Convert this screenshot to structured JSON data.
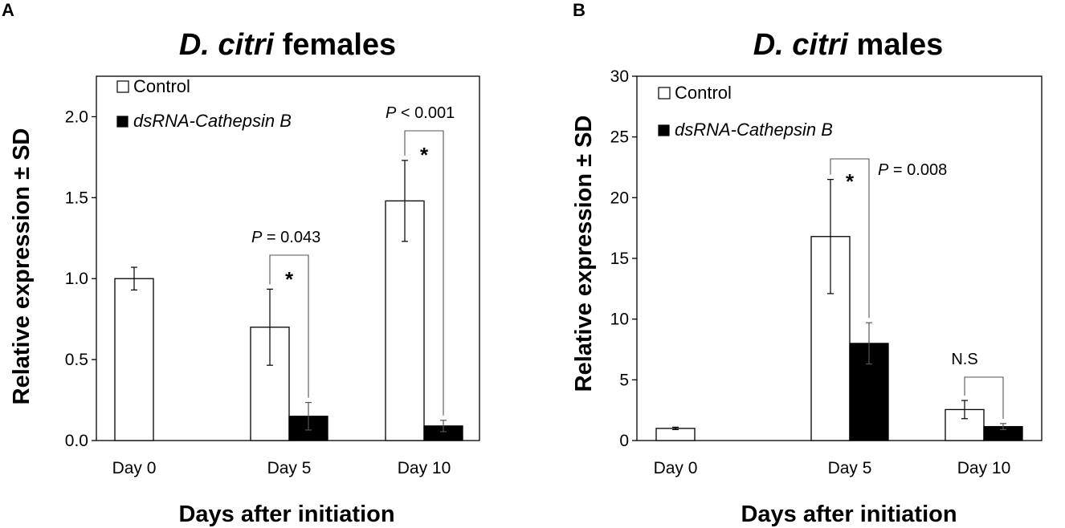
{
  "chart_data": [
    {
      "panel_label": "A",
      "type": "bar",
      "title_italic": "D. citri",
      "title_rest": " females",
      "xlabel": "Days after initiation",
      "ylabel": "Relative expression ± SD",
      "ylim": [
        0,
        2.25
      ],
      "yticks": [
        "0.0",
        "0.5",
        "1.0",
        "1.5",
        "2.0"
      ],
      "ytick_values": [
        0,
        0.5,
        1.0,
        1.5,
        2.0
      ],
      "categories": [
        "Day 0",
        "Day 5",
        "Day 10"
      ],
      "legend": {
        "position": "top-left",
        "entries": [
          "Control",
          "dsRNA-Cathepsin B"
        ]
      },
      "series": [
        {
          "name": "Control",
          "color": "#ffffff",
          "values": [
            1.0,
            0.7,
            1.48
          ],
          "errors": [
            0.07,
            0.235,
            0.25
          ]
        },
        {
          "name": "dsRNA-Cathepsin B",
          "color": "#000000",
          "values": [
            null,
            0.15,
            0.09
          ],
          "errors": [
            null,
            0.085,
            0.035
          ]
        }
      ],
      "annotations": [
        {
          "category": "Day 5",
          "star": "*",
          "p_label": "P",
          "p_value": " = 0.043"
        },
        {
          "category": "Day 10",
          "star": "*",
          "p_label": "P",
          "p_value": " < 0.001"
        }
      ]
    },
    {
      "panel_label": "B",
      "type": "bar",
      "title_italic": "D. citri",
      "title_rest": " males",
      "xlabel": "Days after initiation",
      "ylabel": "Relative expression ± SD",
      "ylim": [
        0,
        30
      ],
      "yticks": [
        "0",
        "5",
        "10",
        "15",
        "20",
        "25",
        "30"
      ],
      "ytick_values": [
        0,
        5,
        10,
        15,
        20,
        25,
        30
      ],
      "categories": [
        "Day 0",
        "Day 5",
        "Day 10"
      ],
      "legend": {
        "position": "top-left",
        "entries": [
          "Control",
          "dsRNA-Cathepsin B"
        ]
      },
      "series": [
        {
          "name": "Control",
          "color": "#ffffff",
          "values": [
            1.0,
            16.8,
            2.55
          ],
          "errors": [
            0.1,
            4.7,
            0.75
          ]
        },
        {
          "name": "dsRNA-Cathepsin B",
          "color": "#000000",
          "values": [
            null,
            8.0,
            1.15
          ],
          "errors": [
            null,
            1.7,
            0.25
          ]
        }
      ],
      "annotations": [
        {
          "category": "Day 5",
          "star": "*",
          "p_label": "P",
          "p_value": " = 0.008"
        },
        {
          "category": "Day 10",
          "star": "",
          "p_label": "",
          "p_value": "N.S"
        }
      ]
    }
  ]
}
